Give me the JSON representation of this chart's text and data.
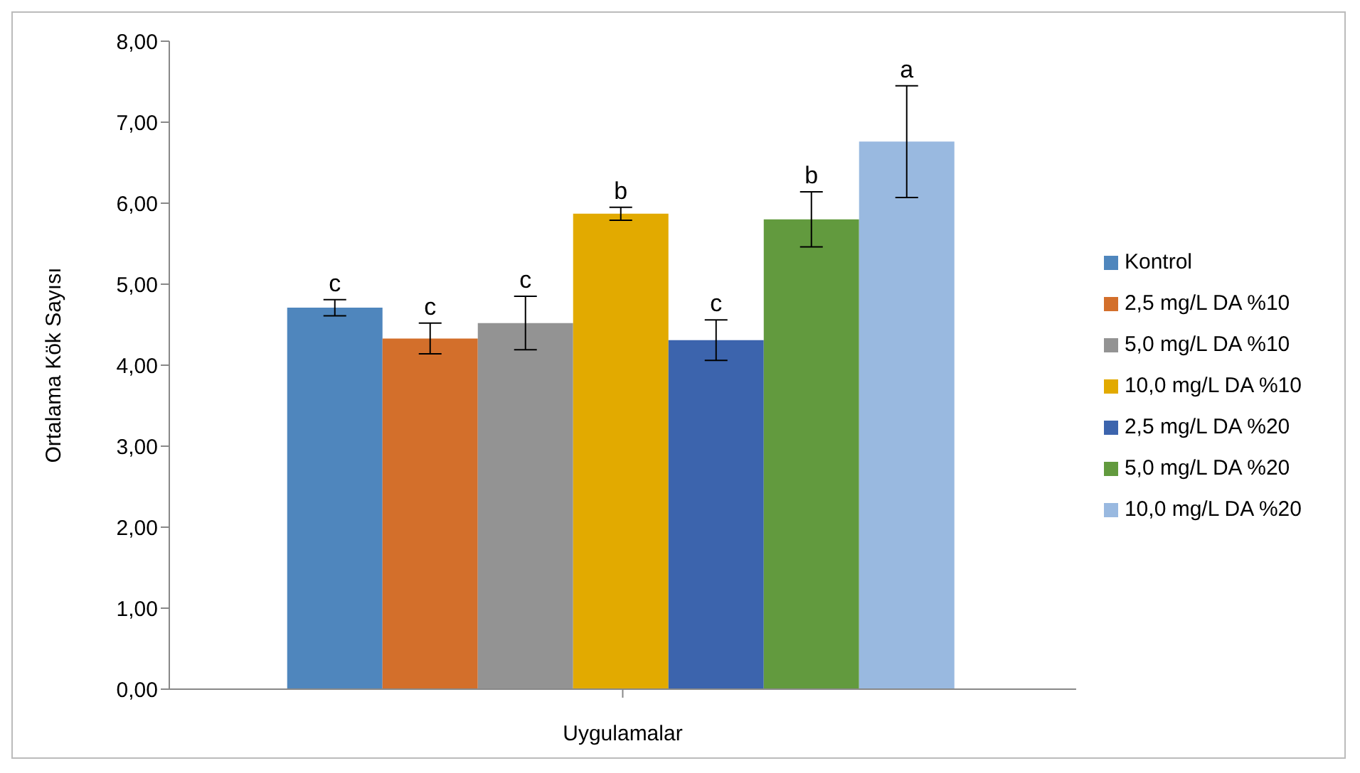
{
  "chart_data": {
    "type": "bar",
    "xlabel": "Uygulamalar",
    "ylabel": "Ortalama Kök Sayısı",
    "categories": [
      null
    ],
    "series": [
      {
        "name": "Kontrol",
        "color": "#4f86bd",
        "values": [
          4.71
        ],
        "errors": [
          0.1
        ],
        "value_labels": [
          "c"
        ]
      },
      {
        "name": "2,5 mg/L DA %10",
        "color": "#d36f2b",
        "values": [
          4.33
        ],
        "errors": [
          0.19
        ],
        "value_labels": [
          "c"
        ]
      },
      {
        "name": "5,0 mg/L DA %10",
        "color": "#939393",
        "values": [
          4.52
        ],
        "errors": [
          0.33
        ],
        "value_labels": [
          "c"
        ]
      },
      {
        "name": "10,0 mg/L DA %10",
        "color": "#e2aa00",
        "values": [
          5.87
        ],
        "errors": [
          0.08
        ],
        "value_labels": [
          "b"
        ]
      },
      {
        "name": "2,5 mg/L DA %20",
        "color": "#3c64ad",
        "values": [
          4.31
        ],
        "errors": [
          0.25
        ],
        "value_labels": [
          "c"
        ]
      },
      {
        "name": "5,0 mg/L DA %20",
        "color": "#629a3e",
        "values": [
          5.8
        ],
        "errors": [
          0.34
        ],
        "value_labels": [
          "b"
        ]
      },
      {
        "name": "10,0 mg/L DA %20",
        "color": "#99b9e0",
        "values": [
          6.76
        ],
        "errors": [
          0.69
        ],
        "value_labels": [
          "a"
        ]
      }
    ],
    "ylim": [
      0,
      8
    ],
    "yticks": [
      {
        "value": 0,
        "label": "0,00"
      },
      {
        "value": 1,
        "label": "1,00"
      },
      {
        "value": 2,
        "label": "2,00"
      },
      {
        "value": 3,
        "label": "3,00"
      },
      {
        "value": 4,
        "label": "4,00"
      },
      {
        "value": 5,
        "label": "5,00"
      },
      {
        "value": 6,
        "label": "6,00"
      },
      {
        "value": 7,
        "label": "7,00"
      },
      {
        "value": 8,
        "label": "8,00"
      }
    ],
    "grid": false,
    "legend": "right"
  }
}
